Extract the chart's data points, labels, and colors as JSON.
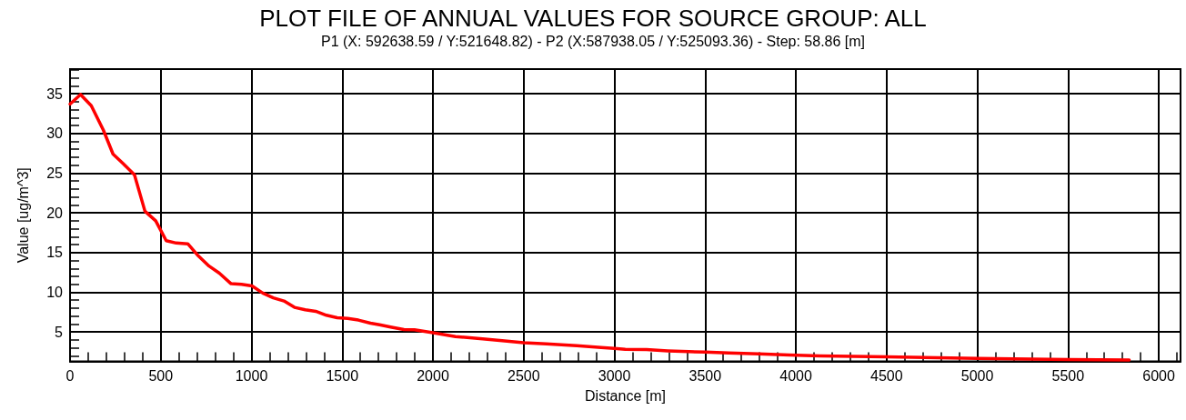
{
  "chart_data": {
    "type": "line",
    "title": "PLOT FILE OF ANNUAL VALUES FOR SOURCE GROUP: ALL",
    "subtitle": "P1 (X: 592638.59 / Y:521648.82) - P2 (X:587938.05 / Y:525093.36) - Step: 58.86 [m]",
    "xlabel": "Distance [m]",
    "ylabel": "Value [ug/m^3]",
    "xlim": [
      0,
      6120
    ],
    "ylim": [
      1.3,
      38.1
    ],
    "xticks": [
      0,
      {
        "value": 100,
        "label": null
      },
      {
        "value": 200,
        "label": null
      },
      {
        "value": 300,
        "label": null
      },
      {
        "value": 400,
        "label": null
      },
      500,
      {
        "value": 600,
        "label": null
      },
      {
        "value": 700,
        "label": null
      },
      {
        "value": 800,
        "label": null
      },
      {
        "value": 900,
        "label": null
      },
      1000,
      {
        "value": 1100,
        "label": null
      },
      {
        "value": 1200,
        "label": null
      },
      {
        "value": 1300,
        "label": null
      },
      {
        "value": 1400,
        "label": null
      },
      1500,
      {
        "value": 1600,
        "label": null
      },
      {
        "value": 1700,
        "label": null
      },
      {
        "value": 1800,
        "label": null
      },
      {
        "value": 1900,
        "label": null
      },
      2000,
      {
        "value": 2100,
        "label": null
      },
      {
        "value": 2200,
        "label": null
      },
      {
        "value": 2300,
        "label": null
      },
      {
        "value": 2400,
        "label": null
      },
      2500,
      {
        "value": 2600,
        "label": null
      },
      {
        "value": 2700,
        "label": null
      },
      {
        "value": 2800,
        "label": null
      },
      {
        "value": 2900,
        "label": null
      },
      3000,
      {
        "value": 3100,
        "label": null
      },
      {
        "value": 3200,
        "label": null
      },
      {
        "value": 3300,
        "label": null
      },
      {
        "value": 3400,
        "label": null
      },
      3500,
      {
        "value": 3600,
        "label": null
      },
      {
        "value": 3700,
        "label": null
      },
      {
        "value": 3800,
        "label": null
      },
      {
        "value": 3900,
        "label": null
      },
      4000,
      {
        "value": 4100,
        "label": null
      },
      {
        "value": 4200,
        "label": null
      },
      {
        "value": 4300,
        "label": null
      },
      {
        "value": 4400,
        "label": null
      },
      4500,
      {
        "value": 4600,
        "label": null
      },
      {
        "value": 4700,
        "label": null
      },
      {
        "value": 4800,
        "label": null
      },
      {
        "value": 4900,
        "label": null
      },
      5000,
      {
        "value": 5100,
        "label": null
      },
      {
        "value": 5200,
        "label": null
      },
      {
        "value": 5300,
        "label": null
      },
      {
        "value": 5400,
        "label": null
      },
      5500,
      {
        "value": 5600,
        "label": null
      },
      {
        "value": 5700,
        "label": null
      },
      {
        "value": 5800,
        "label": null
      },
      {
        "value": 5900,
        "label": null
      },
      6000,
      {
        "value": 6100,
        "label": null
      }
    ],
    "yticks": [
      {
        "value": 2,
        "label": null
      },
      {
        "value": 3,
        "label": null
      },
      {
        "value": 4,
        "label": null
      },
      5,
      {
        "value": 6,
        "label": null
      },
      {
        "value": 7,
        "label": null
      },
      {
        "value": 8,
        "label": null
      },
      {
        "value": 9,
        "label": null
      },
      10,
      {
        "value": 11,
        "label": null
      },
      {
        "value": 12,
        "label": null
      },
      {
        "value": 13,
        "label": null
      },
      {
        "value": 14,
        "label": null
      },
      15,
      {
        "value": 16,
        "label": null
      },
      {
        "value": 17,
        "label": null
      },
      {
        "value": 18,
        "label": null
      },
      {
        "value": 19,
        "label": null
      },
      20,
      {
        "value": 21,
        "label": null
      },
      {
        "value": 22,
        "label": null
      },
      {
        "value": 23,
        "label": null
      },
      {
        "value": 24,
        "label": null
      },
      25,
      {
        "value": 26,
        "label": null
      },
      {
        "value": 27,
        "label": null
      },
      {
        "value": 28,
        "label": null
      },
      {
        "value": 29,
        "label": null
      },
      30,
      {
        "value": 31,
        "label": null
      },
      {
        "value": 32,
        "label": null
      },
      {
        "value": 33,
        "label": null
      },
      {
        "value": 34,
        "label": null
      },
      35,
      {
        "value": 36,
        "label": null
      },
      {
        "value": 37,
        "label": null
      },
      {
        "value": 38,
        "label": null
      }
    ],
    "grid": true,
    "marker": "none",
    "line_style": "solid",
    "series": [
      {
        "color": "#ff0000",
        "x": [
          0,
          58,
          117,
          184,
          237,
          293,
          355,
          413,
          472,
          530,
          585,
          649,
          702,
          766,
          823,
          886,
          945,
          1003,
          1062,
          1120,
          1179,
          1237,
          1296,
          1354,
          1413,
          1472,
          1530,
          1589,
          1656,
          1706,
          1773,
          1840,
          1898,
          2000,
          2124,
          2274,
          2408,
          2500,
          2625,
          2793,
          2927,
          3000,
          3060,
          3177,
          3294,
          3411,
          3500,
          3629,
          3796,
          3964,
          4131,
          4499,
          5000,
          5502,
          5837
        ],
        "values": [
          33.7,
          34.9,
          33.5,
          30.4,
          27.4,
          26.2,
          24.8,
          20.2,
          19.0,
          16.5,
          16.2,
          16.1,
          14.7,
          13.3,
          12.4,
          11.1,
          11.0,
          10.8,
          9.9,
          9.3,
          8.9,
          8.1,
          7.8,
          7.6,
          7.1,
          6.8,
          6.7,
          6.5,
          6.1,
          5.9,
          5.6,
          5.3,
          5.27,
          4.9,
          4.43,
          4.12,
          3.85,
          3.66,
          3.5,
          3.28,
          3.05,
          2.94,
          2.82,
          2.79,
          2.63,
          2.52,
          2.48,
          2.37,
          2.25,
          2.1,
          2.0,
          1.88,
          1.66,
          1.54,
          1.48
        ]
      }
    ]
  }
}
